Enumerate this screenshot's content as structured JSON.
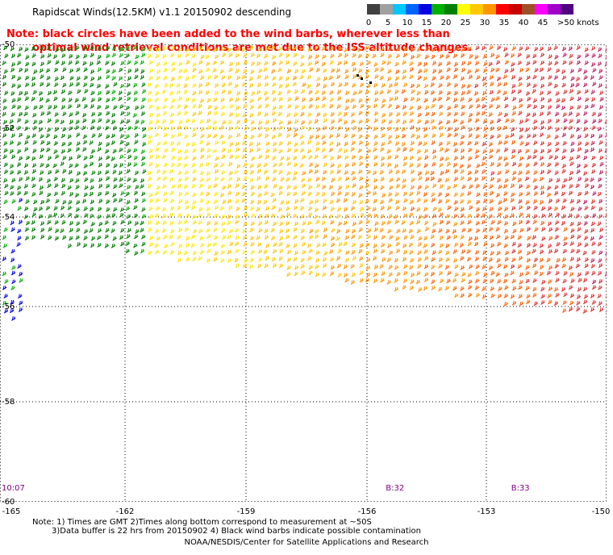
{
  "title": "Rapidscat Winds(12.5KM) v1.1 20150902 descending",
  "colorbar": {
    "labels": [
      "0",
      "5",
      "10",
      "15",
      "20",
      "25",
      "30",
      "35",
      "40",
      "45",
      ">50 knots"
    ],
    "colors": [
      "#404040",
      "#a0a0a0",
      "#00c8ff",
      "#0064ff",
      "#0000e0",
      "#00b000",
      "#008000",
      "#ffff00",
      "#ffc800",
      "#ff9600",
      "#ff0000",
      "#c80000",
      "#a05028",
      "#ff00ff",
      "#a000c8",
      "#500080"
    ]
  },
  "note": {
    "line1": "Note: black circles have been added to the wind barbs, wherever less than",
    "line2": "optimal wind retrieval conditions are met due to the ISS altitude changes."
  },
  "map": {
    "lat_labels": [
      "-50",
      "-52",
      "-54",
      "-56",
      "-58",
      "-60"
    ],
    "lon_labels": [
      "-165",
      "-162",
      "-159",
      "-156",
      "-153",
      "-150"
    ],
    "lat_range": [
      -60,
      -50
    ],
    "lon_range": [
      -165,
      -150
    ],
    "grid": "dotted",
    "time_labels": [
      {
        "text": "10:07",
        "lon": -165
      },
      {
        "text": "B:32",
        "lon": -155.3
      },
      {
        "text": "B:33",
        "lon": -152.2
      }
    ]
  },
  "footnote": {
    "line1": "Note: 1) Times are GMT 2)Times along bottom correspond to measurement at ~50S",
    "line2": "3)Data buffer is 22 hrs from 20150902 4) Black wind barbs indicate possible contamination"
  },
  "credit": "NOAA/NESDIS/Center for Satellite Applications and Research"
}
